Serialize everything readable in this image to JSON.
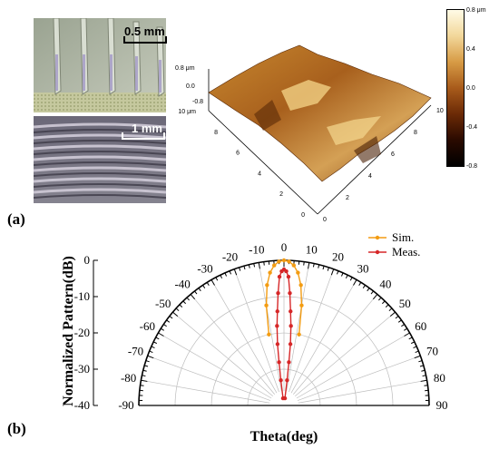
{
  "panel_a": {
    "label": "(a)",
    "photo_top": {
      "scale_bar": "0.5 mm"
    },
    "photo_bottom": {
      "scale_bar": "1 mm"
    },
    "afm": {
      "z_top_label": "0.8 μm",
      "z_zero_label": "0.0",
      "z_low_label": "-0.8",
      "y_ticks": [
        "10 μm",
        "8",
        "6",
        "4",
        "2",
        "0"
      ],
      "x_ticks": [
        "0",
        "2",
        "4",
        "6",
        "8",
        "10 μm"
      ],
      "colorbar_ticks": [
        "0.8 μm",
        "0.4",
        "0.0",
        "-0.4",
        "-0.8"
      ],
      "colorbar_colors": [
        "#fffbe6",
        "#f2d79a",
        "#d79b45",
        "#a85b1b",
        "#6b2a06",
        "#2a0a00",
        "#000000"
      ]
    }
  },
  "panel_b": {
    "label": "(b)"
  },
  "chart_data": {
    "type": "polar-line",
    "xlabel": "Theta(deg)",
    "ylabel": "Normalized Pattern(dB)",
    "theta_ticks": [
      -90,
      -80,
      -70,
      -60,
      -50,
      -40,
      -30,
      -20,
      -10,
      0,
      10,
      20,
      30,
      40,
      50,
      60,
      70,
      80,
      90
    ],
    "r_ticks": [
      0,
      -10,
      -20,
      -30,
      -40
    ],
    "rlim": [
      -40,
      0
    ],
    "thetalim": [
      -90,
      90
    ],
    "legend_placement": "top-right",
    "grid": true,
    "series": [
      {
        "name": "Sim.",
        "color": "#f39c12",
        "theta": [
          -12,
          -10,
          -8,
          -6,
          -4,
          -2,
          0,
          2,
          4,
          6,
          8,
          10,
          12
        ],
        "values": [
          -20,
          -12,
          -6.5,
          -3.2,
          -1.3,
          -0.3,
          0,
          -0.3,
          -1.3,
          -3.2,
          -6.5,
          -12,
          -20
        ]
      },
      {
        "name": "Meas.",
        "color": "#d62728",
        "theta": [
          -7.5,
          -7,
          -6.5,
          -6,
          -5,
          -4,
          -3,
          -2,
          -1,
          0,
          1,
          2,
          3,
          4,
          5,
          6,
          6.5,
          7,
          7.5
        ],
        "values": [
          -38,
          -33,
          -28,
          -23,
          -18,
          -14,
          -9,
          -4.5,
          -3,
          -2.5,
          -3,
          -4.5,
          -9,
          -14,
          -18,
          -23,
          -28,
          -33,
          -38
        ]
      }
    ]
  }
}
